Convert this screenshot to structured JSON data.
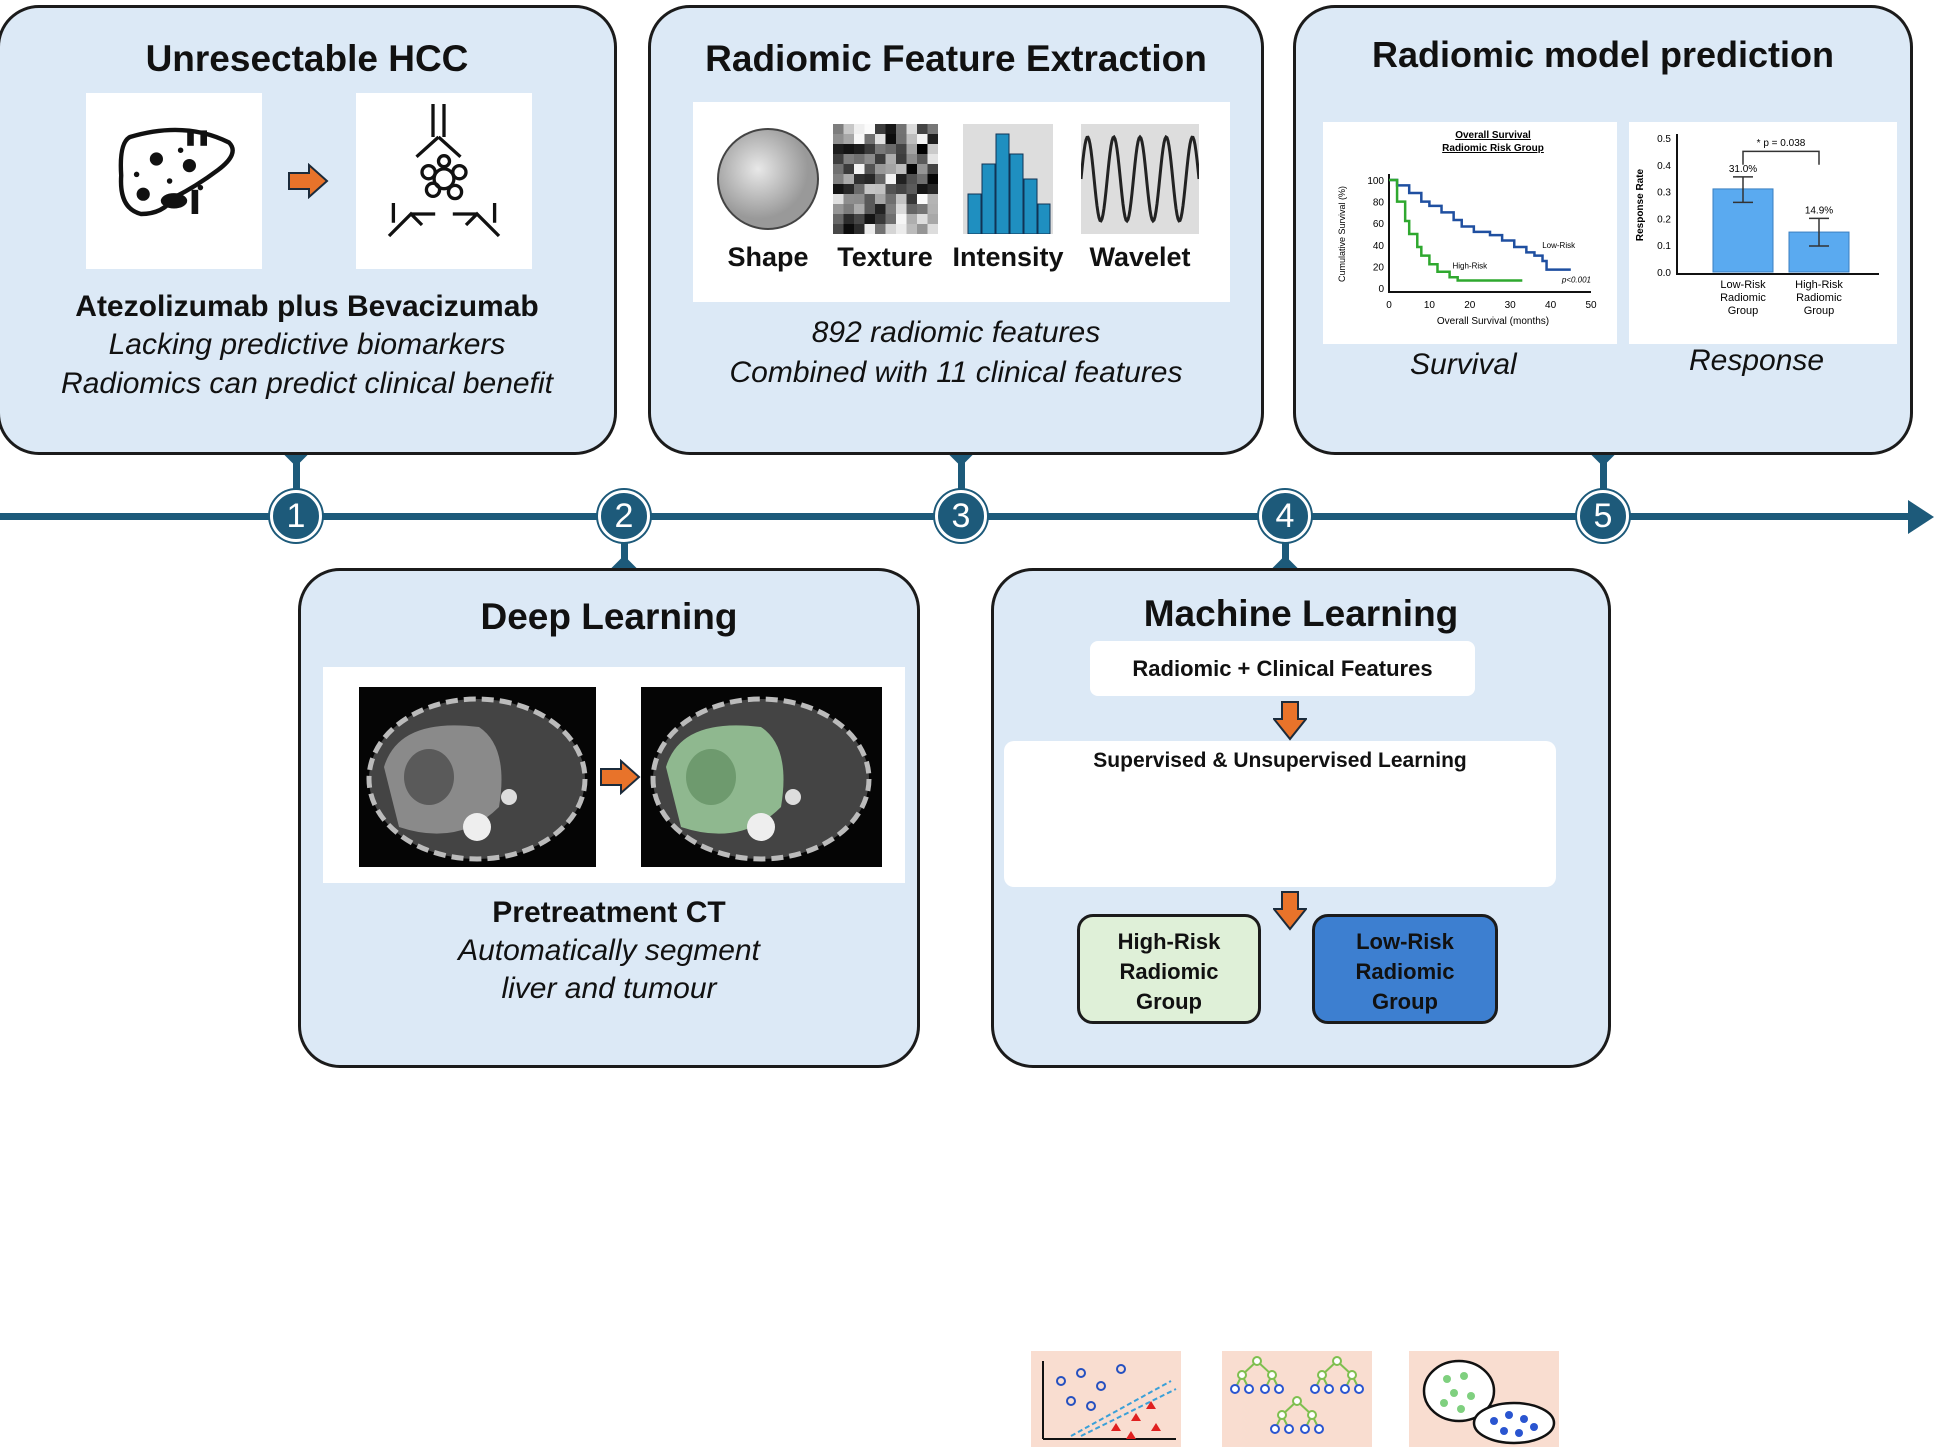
{
  "colors": {
    "box_bg": "#dce9f6",
    "timeline": "#1d5a7a",
    "arrow": "#e8732a",
    "high_risk_box": "#dff0d8",
    "low_risk_box": "#3d7fd0",
    "peach": "#f9ddd0",
    "low_risk_curve": "#1f4fa0",
    "high_risk_curve": "#2fa82f",
    "bar": "#5aaaf0"
  },
  "steps": [
    {
      "number": "1",
      "title": "Unresectable HCC",
      "lines_bold": "Atezolizumab plus Bevacizumab",
      "lines_italic": [
        "Lacking predictive biomarkers",
        "Radiomics can predict clinical benefit"
      ],
      "icons": [
        "liver-icon",
        "antibody-icon"
      ]
    },
    {
      "number": "2",
      "title": "Deep Learning",
      "caption": "Pretreatment CT",
      "lines_italic": [
        "Automatically segment",
        "liver and tumour"
      ]
    },
    {
      "number": "3",
      "title": "Radiomic Feature Extraction",
      "features": [
        "Shape",
        "Texture",
        "Intensity",
        "Wavelet"
      ],
      "lines_italic": [
        "892 radiomic features",
        "Combined with 11 clinical features"
      ]
    },
    {
      "number": "4",
      "title": "Machine Learning",
      "input": "Radiomic + Clinical Features",
      "method": "Supervised & Unsupervised Learning",
      "groups": [
        [
          "High-Risk",
          "Radiomic",
          "Group"
        ],
        [
          "Low-Risk",
          "Radiomic",
          "Group"
        ]
      ]
    },
    {
      "number": "5",
      "title": "Radiomic model prediction",
      "labels": [
        "Survival",
        "Response"
      ]
    }
  ],
  "chart_data": [
    {
      "type": "line",
      "title": [
        "Overall Survival",
        "Radiomic Risk Group"
      ],
      "xlabel": "Overall Survival (months)",
      "ylabel": "Cumulative Survival (%)",
      "xlim": [
        0,
        50
      ],
      "ylim": [
        0,
        100
      ],
      "xticks": [
        "0",
        "10",
        "20",
        "30",
        "40",
        "50"
      ],
      "yticks": [
        "0",
        "20",
        "40",
        "60",
        "80",
        "100"
      ],
      "annotation": "p<0.001",
      "series": [
        {
          "name": "Low-Risk",
          "points": [
            [
              0,
              100
            ],
            [
              2,
              95
            ],
            [
              5,
              88
            ],
            [
              8,
              80
            ],
            [
              10,
              76
            ],
            [
              13,
              70
            ],
            [
              16,
              63
            ],
            [
              18,
              57
            ],
            [
              21,
              52
            ],
            [
              25,
              49
            ],
            [
              28,
              44
            ],
            [
              31,
              38
            ],
            [
              34,
              33
            ],
            [
              36,
              30
            ],
            [
              38,
              25
            ],
            [
              39,
              17
            ],
            [
              45,
              17
            ]
          ]
        },
        {
          "name": "High-Risk",
          "points": [
            [
              0,
              100
            ],
            [
              2,
              80
            ],
            [
              4,
              62
            ],
            [
              5,
              50
            ],
            [
              7,
              38
            ],
            [
              8,
              30
            ],
            [
              10,
              22
            ],
            [
              12,
              15
            ],
            [
              15,
              10
            ],
            [
              17,
              7
            ],
            [
              33,
              7
            ]
          ]
        }
      ]
    },
    {
      "type": "bar",
      "categories": [
        [
          "Low-Risk",
          "Radiomic",
          "Group"
        ],
        [
          "High-Risk",
          "Radiomic",
          "Group"
        ]
      ],
      "values": [
        0.31,
        0.149
      ],
      "errors": [
        [
          0.26,
          0.355
        ],
        [
          0.097,
          0.2
        ]
      ],
      "data_labels": [
        "31.0%",
        "14.9%"
      ],
      "ylabel": "Response Rate",
      "ylim": [
        0,
        0.5
      ],
      "yticks": [
        "0.0",
        "0.1",
        "0.2",
        "0.3",
        "0.4",
        "0.5"
      ],
      "annotation": "* p = 0.038"
    }
  ]
}
